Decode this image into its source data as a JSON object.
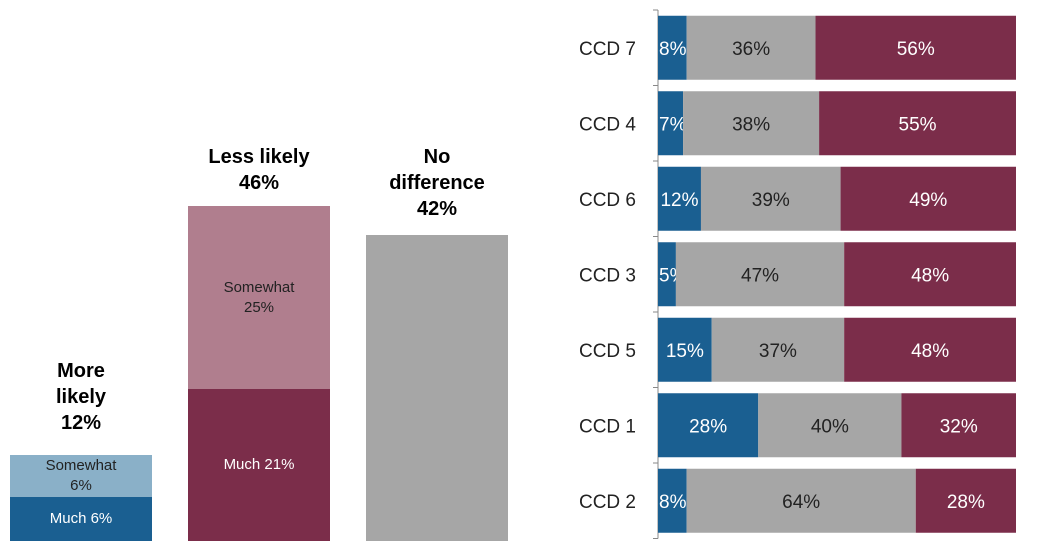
{
  "colors": {
    "blue_dark": "#1a5f91",
    "blue_light": "#8ab0c8",
    "maroon_dark": "#7b2d4a",
    "maroon_light": "#b07e8e",
    "gray": "#a6a6a6"
  },
  "chart_data": [
    {
      "type": "bar",
      "stacked": true,
      "categories": [
        "More likely",
        "Less likely",
        "No difference"
      ],
      "totals": [
        "12%",
        "46%",
        "42%"
      ],
      "headers": {
        "more": {
          "line1": "More",
          "line2": "likely",
          "pct": "12%"
        },
        "less": {
          "line1": "Less likely",
          "pct": "46%"
        },
        "nodiff": {
          "line1": "No",
          "line2": "difference",
          "pct": "42%"
        }
      },
      "series": [
        {
          "name": "Much",
          "values": [
            6,
            21,
            42
          ]
        },
        {
          "name": "Somewhat",
          "values": [
            6,
            25,
            0
          ]
        }
      ],
      "segment_labels": {
        "more_somewhat": {
          "line1": "Somewhat",
          "line2": "6%"
        },
        "more_much": "Much 6%",
        "less_somewhat": {
          "line1": "Somewhat",
          "line2": "25%"
        },
        "less_much": "Much 21%"
      }
    },
    {
      "type": "bar",
      "orientation": "horizontal",
      "stacked": true,
      "categories": [
        "CCD 7",
        "CCD 4",
        "CCD 6",
        "CCD 3",
        "CCD 5",
        "CCD 1",
        "CCD 2"
      ],
      "series": [
        {
          "values": [
            8,
            7,
            12,
            5,
            15,
            28,
            8
          ]
        },
        {
          "values": [
            36,
            38,
            39,
            47,
            37,
            40,
            64
          ]
        },
        {
          "values": [
            56,
            55,
            49,
            48,
            48,
            32,
            28
          ]
        }
      ],
      "labels": [
        [
          "8%",
          "36%",
          "56%"
        ],
        [
          "7%",
          "38%",
          "55%"
        ],
        [
          "12%",
          "39%",
          "49%"
        ],
        [
          "5%",
          "47%",
          "48%"
        ],
        [
          "15%",
          "37%",
          "48%"
        ],
        [
          "28%",
          "40%",
          "32%"
        ],
        [
          "8%",
          "64%",
          "28%"
        ]
      ]
    }
  ]
}
